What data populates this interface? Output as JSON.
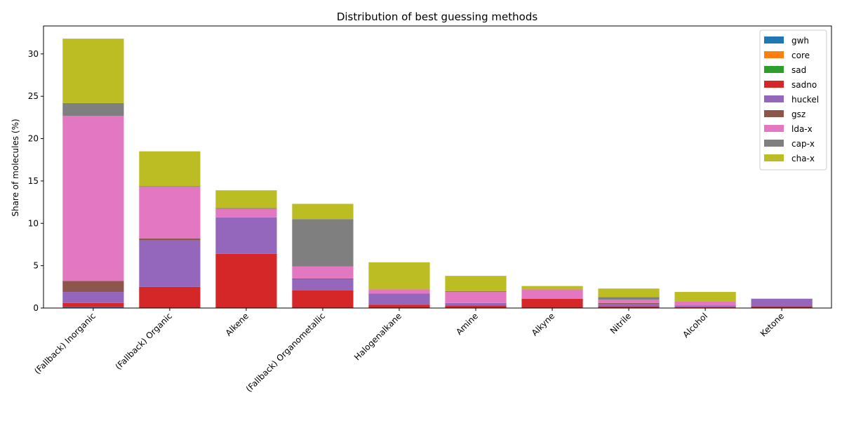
{
  "chart_data": {
    "type": "bar",
    "stacked": true,
    "title": "Distribution of best guessing methods",
    "xlabel": "",
    "ylabel": "Share of molecules (%)",
    "ylim": [
      0,
      33.3
    ],
    "yticks": [
      0,
      5,
      10,
      15,
      20,
      25,
      30
    ],
    "grid": false,
    "legend_position": "top-right",
    "categories": [
      "(Fallback) Inorganic",
      "(Fallback) Organic",
      "Alkene",
      "(Fallback) Organometallic",
      "Halogenalkane",
      "Amine",
      "Alkyne",
      "Nitrile",
      "Alcohol",
      "Ketone"
    ],
    "series": [
      {
        "name": "gwh",
        "color": "#1f77b4",
        "values": [
          0.1,
          0,
          0,
          0,
          0,
          0,
          0,
          0,
          0,
          0
        ]
      },
      {
        "name": "core",
        "color": "#ff7f0e",
        "values": [
          0,
          0,
          0,
          0,
          0,
          0,
          0,
          0,
          0,
          0
        ]
      },
      {
        "name": "sad",
        "color": "#2ca02c",
        "values": [
          0,
          0,
          0,
          0,
          0,
          0,
          0,
          0,
          0,
          0
        ]
      },
      {
        "name": "sadno",
        "color": "#d62728",
        "values": [
          0.5,
          2.5,
          6.4,
          2.1,
          0.4,
          0.3,
          1.1,
          0.2,
          0.1,
          0.2
        ]
      },
      {
        "name": "huckel",
        "color": "#9467bd",
        "values": [
          1.3,
          5.5,
          4.3,
          1.3,
          1.3,
          0.3,
          0,
          0.3,
          0.2,
          0.9
        ]
      },
      {
        "name": "gsz",
        "color": "#8c564b",
        "values": [
          1.3,
          0.2,
          0,
          0.1,
          0,
          0,
          0,
          0.1,
          0,
          0
        ]
      },
      {
        "name": "lda-x",
        "color": "#e377c2",
        "values": [
          19.5,
          6.1,
          1.0,
          1.4,
          0.5,
          1.3,
          1.1,
          0.4,
          0.5,
          0
        ]
      },
      {
        "name": "cap-x",
        "color": "#7f7f7f",
        "values": [
          1.5,
          0.1,
          0.1,
          5.6,
          0,
          0.1,
          0,
          0.3,
          0,
          0
        ]
      },
      {
        "name": "cha-x",
        "color": "#bcbd22",
        "values": [
          7.6,
          4.1,
          2.1,
          1.8,
          3.2,
          1.8,
          0.4,
          1.0,
          1.1,
          0
        ]
      }
    ]
  }
}
